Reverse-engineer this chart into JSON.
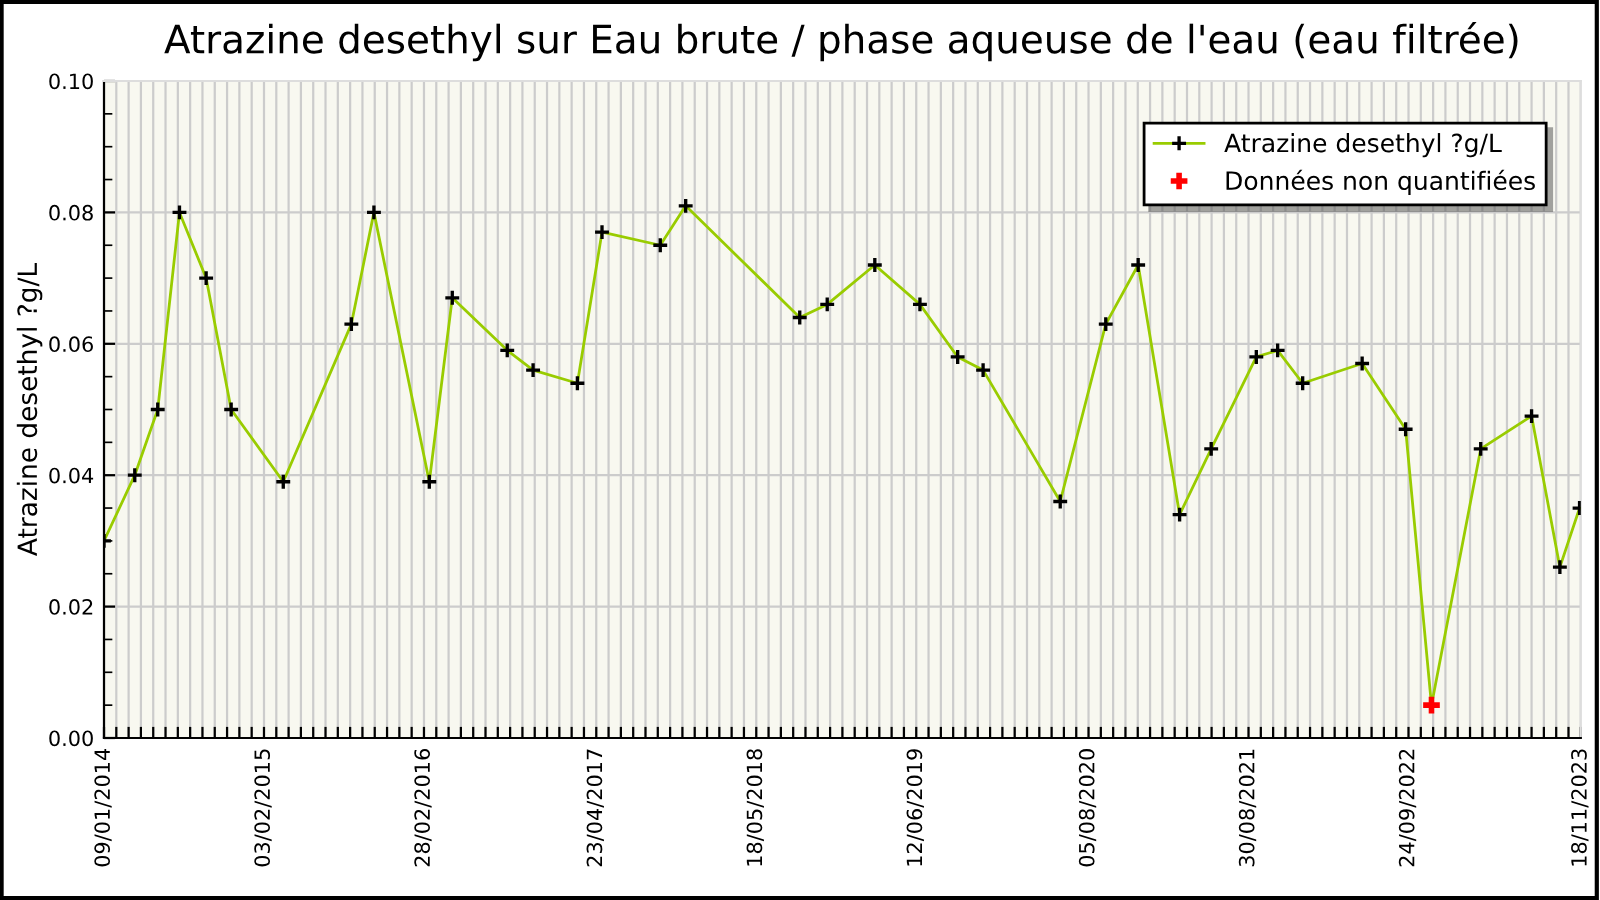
{
  "chart_data": {
    "type": "line",
    "title": "Atrazine desethyl sur Eau brute / phase aqueuse de l'eau (eau filtrée)",
    "ylabel": "Atrazine desethyl ?g/L",
    "x": [
      "2014-01-09",
      "2014-03-25",
      "2014-05-20",
      "2014-07-12",
      "2014-09-15",
      "2014-11-15",
      "2015-03-22",
      "2015-09-04",
      "2015-10-29",
      "2016-03-12",
      "2016-05-07",
      "2016-09-18",
      "2016-11-20",
      "2017-03-08",
      "2017-05-07",
      "2017-09-26",
      "2017-11-27",
      "2018-09-01",
      "2018-11-07",
      "2019-03-03",
      "2019-06-21",
      "2019-09-21",
      "2019-11-22",
      "2020-05-28",
      "2020-09-16",
      "2020-12-04",
      "2021-03-15",
      "2021-05-31",
      "2021-09-18",
      "2021-11-09",
      "2022-01-09",
      "2022-06-03",
      "2022-09-17",
      "2022-11-19",
      "2023-03-19",
      "2023-07-21",
      "2023-09-28",
      "2023-11-15"
    ],
    "series": [
      {
        "name": "Atrazine desethyl ?g/L",
        "color": "#99cc00",
        "values": [
          0.03,
          0.04,
          0.05,
          0.08,
          0.07,
          0.05,
          0.039,
          0.063,
          0.08,
          0.039,
          0.067,
          0.059,
          0.056,
          0.054,
          0.077,
          0.075,
          0.081,
          0.064,
          0.066,
          0.072,
          0.066,
          0.058,
          0.056,
          0.036,
          0.063,
          0.072,
          0.034,
          0.044,
          0.058,
          0.059,
          0.054,
          0.057,
          0.047,
          0.005,
          0.044,
          0.049,
          0.026,
          0.035
        ]
      },
      {
        "name": "Données non quantifiées",
        "type": "scatter",
        "color": "#ff0000",
        "x": [
          "2022-11-19"
        ],
        "values": [
          0.005
        ]
      }
    ],
    "marker": "cross",
    "grid": true,
    "legend": "top right",
    "ylim": [
      0,
      0.1
    ],
    "yticks": [
      {
        "value": 0,
        "label": "0.00"
      },
      {
        "value": 0.005,
        "label": null
      },
      {
        "value": 0.01,
        "label": null
      },
      {
        "value": 0.015,
        "label": null
      },
      {
        "value": 0.02,
        "label": "0.02"
      },
      {
        "value": 0.025,
        "label": null
      },
      {
        "value": 0.03,
        "label": null
      },
      {
        "value": 0.035,
        "label": null
      },
      {
        "value": 0.04,
        "label": "0.04"
      },
      {
        "value": 0.045,
        "label": null
      },
      {
        "value": 0.05,
        "label": null
      },
      {
        "value": 0.055,
        "label": null
      },
      {
        "value": 0.06,
        "label": "0.06"
      },
      {
        "value": 0.065,
        "label": null
      },
      {
        "value": 0.07,
        "label": null
      },
      {
        "value": 0.075,
        "label": null
      },
      {
        "value": 0.08,
        "label": "0.08"
      },
      {
        "value": 0.085,
        "label": null
      },
      {
        "value": 0.09,
        "label": null
      },
      {
        "value": 0.095,
        "label": null
      },
      {
        "value": 0.1,
        "label": "0.10"
      }
    ],
    "xlim": [
      "2014-01-09",
      "2023-11-18"
    ],
    "xticks": [
      {
        "value": "2014-01-09",
        "label": "09/01/2014"
      },
      {
        "value": "2014-02-08",
        "label": null
      },
      {
        "value": "2014-03-10",
        "label": null
      },
      {
        "value": "2014-04-09",
        "label": null
      },
      {
        "value": "2014-05-09",
        "label": null
      },
      {
        "value": "2014-06-08",
        "label": null
      },
      {
        "value": "2014-07-08",
        "label": null
      },
      {
        "value": "2014-08-07",
        "label": null
      },
      {
        "value": "2014-09-06",
        "label": null
      },
      {
        "value": "2014-10-06",
        "label": null
      },
      {
        "value": "2014-11-05",
        "label": null
      },
      {
        "value": "2014-12-05",
        "label": null
      },
      {
        "value": "2015-01-04",
        "label": null
      },
      {
        "value": "2015-02-03",
        "label": "03/02/2015"
      },
      {
        "value": "2015-03-05",
        "label": null
      },
      {
        "value": "2015-04-04",
        "label": null
      },
      {
        "value": "2015-05-04",
        "label": null
      },
      {
        "value": "2015-06-03",
        "label": null
      },
      {
        "value": "2015-07-03",
        "label": null
      },
      {
        "value": "2015-08-02",
        "label": null
      },
      {
        "value": "2015-09-01",
        "label": null
      },
      {
        "value": "2015-10-01",
        "label": null
      },
      {
        "value": "2015-10-31",
        "label": null
      },
      {
        "value": "2015-11-30",
        "label": null
      },
      {
        "value": "2015-12-30",
        "label": null
      },
      {
        "value": "2016-01-29",
        "label": null
      },
      {
        "value": "2016-02-28",
        "label": "28/02/2016"
      },
      {
        "value": "2016-03-29",
        "label": null
      },
      {
        "value": "2016-04-28",
        "label": null
      },
      {
        "value": "2016-05-28",
        "label": null
      },
      {
        "value": "2016-06-27",
        "label": null
      },
      {
        "value": "2016-07-27",
        "label": null
      },
      {
        "value": "2016-08-26",
        "label": null
      },
      {
        "value": "2016-09-25",
        "label": null
      },
      {
        "value": "2016-10-25",
        "label": null
      },
      {
        "value": "2016-11-24",
        "label": null
      },
      {
        "value": "2016-12-24",
        "label": null
      },
      {
        "value": "2017-01-23",
        "label": null
      },
      {
        "value": "2017-02-22",
        "label": null
      },
      {
        "value": "2017-03-24",
        "label": null
      },
      {
        "value": "2017-04-23",
        "label": "23/04/2017"
      },
      {
        "value": "2017-05-23",
        "label": null
      },
      {
        "value": "2017-06-22",
        "label": null
      },
      {
        "value": "2017-07-22",
        "label": null
      },
      {
        "value": "2017-08-21",
        "label": null
      },
      {
        "value": "2017-09-20",
        "label": null
      },
      {
        "value": "2017-10-20",
        "label": null
      },
      {
        "value": "2017-11-19",
        "label": null
      },
      {
        "value": "2017-12-19",
        "label": null
      },
      {
        "value": "2018-01-18",
        "label": null
      },
      {
        "value": "2018-02-17",
        "label": null
      },
      {
        "value": "2018-03-19",
        "label": null
      },
      {
        "value": "2018-04-18",
        "label": null
      },
      {
        "value": "2018-05-18",
        "label": "18/05/2018"
      },
      {
        "value": "2018-06-17",
        "label": null
      },
      {
        "value": "2018-07-17",
        "label": null
      },
      {
        "value": "2018-08-16",
        "label": null
      },
      {
        "value": "2018-09-15",
        "label": null
      },
      {
        "value": "2018-10-15",
        "label": null
      },
      {
        "value": "2018-11-14",
        "label": null
      },
      {
        "value": "2018-12-14",
        "label": null
      },
      {
        "value": "2019-01-13",
        "label": null
      },
      {
        "value": "2019-02-12",
        "label": null
      },
      {
        "value": "2019-03-14",
        "label": null
      },
      {
        "value": "2019-04-13",
        "label": null
      },
      {
        "value": "2019-05-13",
        "label": null
      },
      {
        "value": "2019-06-12",
        "label": "12/06/2019"
      },
      {
        "value": "2019-07-12",
        "label": null
      },
      {
        "value": "2019-08-11",
        "label": null
      },
      {
        "value": "2019-09-10",
        "label": null
      },
      {
        "value": "2019-10-10",
        "label": null
      },
      {
        "value": "2019-11-09",
        "label": null
      },
      {
        "value": "2019-12-09",
        "label": null
      },
      {
        "value": "2020-01-08",
        "label": null
      },
      {
        "value": "2020-02-07",
        "label": null
      },
      {
        "value": "2020-03-08",
        "label": null
      },
      {
        "value": "2020-04-07",
        "label": null
      },
      {
        "value": "2020-05-07",
        "label": null
      },
      {
        "value": "2020-06-06",
        "label": null
      },
      {
        "value": "2020-07-06",
        "label": null
      },
      {
        "value": "2020-08-05",
        "label": "05/08/2020"
      },
      {
        "value": "2020-09-04",
        "label": null
      },
      {
        "value": "2020-10-04",
        "label": null
      },
      {
        "value": "2020-11-03",
        "label": null
      },
      {
        "value": "2020-12-03",
        "label": null
      },
      {
        "value": "2021-01-02",
        "label": null
      },
      {
        "value": "2021-02-01",
        "label": null
      },
      {
        "value": "2021-03-03",
        "label": null
      },
      {
        "value": "2021-04-02",
        "label": null
      },
      {
        "value": "2021-05-02",
        "label": null
      },
      {
        "value": "2021-06-01",
        "label": null
      },
      {
        "value": "2021-07-01",
        "label": null
      },
      {
        "value": "2021-07-31",
        "label": null
      },
      {
        "value": "2021-08-30",
        "label": "30/08/2021"
      },
      {
        "value": "2021-09-29",
        "label": null
      },
      {
        "value": "2021-10-29",
        "label": null
      },
      {
        "value": "2021-11-28",
        "label": null
      },
      {
        "value": "2021-12-28",
        "label": null
      },
      {
        "value": "2022-01-27",
        "label": null
      },
      {
        "value": "2022-02-26",
        "label": null
      },
      {
        "value": "2022-03-28",
        "label": null
      },
      {
        "value": "2022-04-27",
        "label": null
      },
      {
        "value": "2022-05-27",
        "label": null
      },
      {
        "value": "2022-06-26",
        "label": null
      },
      {
        "value": "2022-07-26",
        "label": null
      },
      {
        "value": "2022-08-25",
        "label": null
      },
      {
        "value": "2022-09-24",
        "label": "24/09/2022"
      },
      {
        "value": "2022-10-24",
        "label": null
      },
      {
        "value": "2022-11-23",
        "label": null
      },
      {
        "value": "2022-12-23",
        "label": null
      },
      {
        "value": "2023-01-22",
        "label": null
      },
      {
        "value": "2023-02-21",
        "label": null
      },
      {
        "value": "2023-03-23",
        "label": null
      },
      {
        "value": "2023-04-22",
        "label": null
      },
      {
        "value": "2023-05-22",
        "label": null
      },
      {
        "value": "2023-06-21",
        "label": null
      },
      {
        "value": "2023-07-21",
        "label": null
      },
      {
        "value": "2023-08-20",
        "label": null
      },
      {
        "value": "2023-09-19",
        "label": null
      },
      {
        "value": "2023-10-19",
        "label": null
      },
      {
        "value": "2023-11-18",
        "label": "18/11/2023"
      }
    ]
  }
}
